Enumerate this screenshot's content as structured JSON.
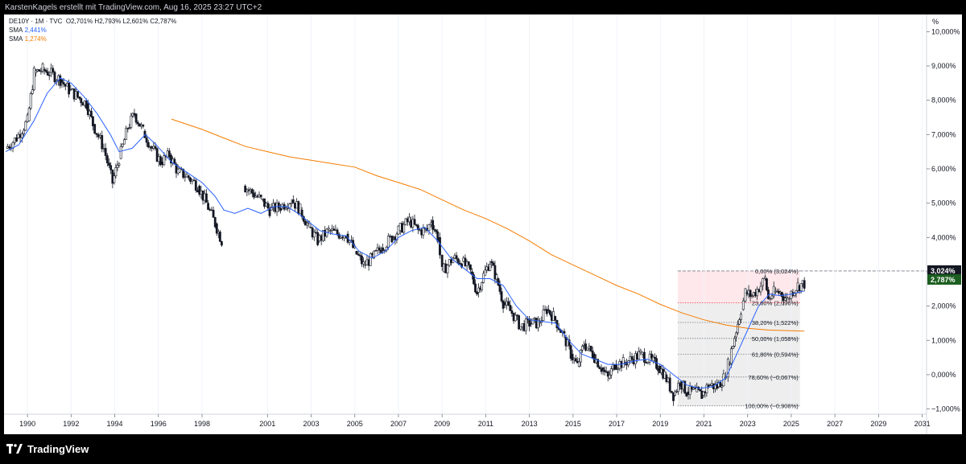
{
  "header": {
    "text": "KarstenKagels erstellt mit TradingView.com, Aug 16, 2025 23:27 UTC+2"
  },
  "legend": {
    "symbol_line": "DE10Y · 1M · TVC",
    "ohlc": "O2,701%  H2,793%  L2,601%  C2,787%",
    "sma1_label": "SMA",
    "sma1_value": "2,441%",
    "sma2_label": "SMA",
    "sma2_value": "1,274%"
  },
  "footer": {
    "brand": "TradingView"
  },
  "colors": {
    "sma_fast": "#2962ff",
    "sma_slow": "#f57c00",
    "fib_top": "#ffcdd2",
    "fib_bottom": "#e0e0e0",
    "price_label": "#1b5e20",
    "fib_label_red": "#f23645"
  },
  "price_labels": {
    "high": "3,024%",
    "last": "2,787%"
  },
  "chart_data": {
    "type": "candlestick",
    "title": "DE10Y · 1M · TVC",
    "ylabel": "%",
    "ylim": [
      -1.15,
      10.5
    ],
    "xlim": [
      1989.0,
      2031.7
    ],
    "x_ticks": [
      1990,
      1992,
      1994,
      1996,
      1998,
      2001,
      2003,
      2005,
      2007,
      2009,
      2011,
      2013,
      2015,
      2017,
      2019,
      2021,
      2023,
      2025,
      2027,
      2029,
      2031
    ],
    "x_tick_labels": [
      "1990",
      "1992",
      "1994",
      "1996",
      "1998",
      "2001",
      "2003",
      "2005",
      "2007",
      "2009",
      "2011",
      "2013",
      "2015",
      "2017",
      "2019",
      "2021",
      "2023",
      "2025",
      "2027",
      "2029",
      "2031"
    ],
    "y_ticks": [
      10,
      9,
      8,
      7,
      6,
      5,
      4,
      3,
      2,
      1,
      0,
      -1
    ],
    "y_tick_labels": [
      "10,000%",
      "9,000%",
      "8,000%",
      "7,000%",
      "6,000%",
      "5,000%",
      "4,000%",
      "3,000%",
      "2,000%",
      "1,000%",
      "0,000%",
      "−1,000%"
    ],
    "y_unit": "%",
    "price_path": [
      [
        1989.0,
        6.6
      ],
      [
        1989.5,
        6.9
      ],
      [
        1990.0,
        7.4
      ],
      [
        1990.3,
        8.8
      ],
      [
        1990.7,
        8.9
      ],
      [
        1991.0,
        8.8
      ],
      [
        1991.5,
        8.6
      ],
      [
        1991.9,
        8.3
      ],
      [
        1992.3,
        8.1
      ],
      [
        1992.7,
        7.9
      ],
      [
        1993.0,
        7.3
      ],
      [
        1993.5,
        6.6
      ],
      [
        1993.9,
        5.6
      ],
      [
        1994.2,
        6.3
      ],
      [
        1994.6,
        7.2
      ],
      [
        1994.9,
        7.6
      ],
      [
        1995.3,
        7.1
      ],
      [
        1995.7,
        6.6
      ],
      [
        1996.1,
        6.2
      ],
      [
        1996.5,
        6.4
      ],
      [
        1996.9,
        5.9
      ],
      [
        1997.3,
        5.8
      ],
      [
        1997.8,
        5.5
      ],
      [
        1998.2,
        5.0
      ],
      [
        1998.6,
        4.4
      ],
      [
        1998.9,
        3.9
      ],
      [
        1999.9,
        5.5
      ],
      [
        2000.3,
        5.3
      ],
      [
        2000.7,
        5.1
      ],
      [
        2001.1,
        4.8
      ],
      [
        2001.6,
        4.9
      ],
      [
        2002.1,
        5.1
      ],
      [
        2002.5,
        4.8
      ],
      [
        2002.9,
        4.3
      ],
      [
        2003.3,
        3.9
      ],
      [
        2003.8,
        4.2
      ],
      [
        2004.2,
        4.1
      ],
      [
        2004.6,
        4.1
      ],
      [
        2005.0,
        3.6
      ],
      [
        2005.4,
        3.2
      ],
      [
        2005.8,
        3.4
      ],
      [
        2006.2,
        3.7
      ],
      [
        2006.7,
        4.0
      ],
      [
        2007.0,
        4.2
      ],
      [
        2007.5,
        4.5
      ],
      [
        2007.9,
        4.2
      ],
      [
        2008.3,
        4.2
      ],
      [
        2008.5,
        4.5
      ],
      [
        2008.8,
        4.0
      ],
      [
        2009.0,
        3.0
      ],
      [
        2009.5,
        3.4
      ],
      [
        2009.9,
        3.3
      ],
      [
        2010.3,
        3.0
      ],
      [
        2010.6,
        2.4
      ],
      [
        2010.9,
        2.9
      ],
      [
        2011.2,
        3.3
      ],
      [
        2011.5,
        2.8
      ],
      [
        2011.8,
        2.1
      ],
      [
        2012.2,
        1.8
      ],
      [
        2012.6,
        1.4
      ],
      [
        2013.0,
        1.5
      ],
      [
        2013.4,
        1.5
      ],
      [
        2013.8,
        1.9
      ],
      [
        2014.1,
        1.7
      ],
      [
        2014.6,
        1.1
      ],
      [
        2014.9,
        0.6
      ],
      [
        2015.2,
        0.25
      ],
      [
        2015.5,
        0.9
      ],
      [
        2015.9,
        0.6
      ],
      [
        2016.3,
        0.2
      ],
      [
        2016.6,
        -0.1
      ],
      [
        2016.9,
        0.3
      ],
      [
        2017.3,
        0.35
      ],
      [
        2017.7,
        0.45
      ],
      [
        2018.1,
        0.6
      ],
      [
        2018.6,
        0.4
      ],
      [
        2018.9,
        0.25
      ],
      [
        2019.2,
        0.0
      ],
      [
        2019.6,
        -0.6
      ],
      [
        2019.9,
        -0.2
      ],
      [
        2020.2,
        -0.5
      ],
      [
        2020.6,
        -0.5
      ],
      [
        2020.9,
        -0.6
      ],
      [
        2021.2,
        -0.3
      ],
      [
        2021.6,
        -0.35
      ],
      [
        2021.9,
        -0.1
      ],
      [
        2022.1,
        0.3
      ],
      [
        2022.4,
        1.1
      ],
      [
        2022.7,
        1.9
      ],
      [
        2022.9,
        2.4
      ],
      [
        2023.2,
        2.3
      ],
      [
        2023.6,
        2.6
      ],
      [
        2023.8,
        2.8
      ],
      [
        2023.95,
        2.2
      ],
      [
        2024.2,
        2.4
      ],
      [
        2024.5,
        2.4
      ],
      [
        2024.8,
        2.2
      ],
      [
        2025.0,
        2.4
      ],
      [
        2025.3,
        2.6
      ],
      [
        2025.6,
        2.65
      ]
    ],
    "sma_fast": {
      "name": "SMA",
      "value_label": "2,441%",
      "points": [
        [
          1989.0,
          6.5
        ],
        [
          1989.6,
          6.7
        ],
        [
          1990.3,
          7.4
        ],
        [
          1990.9,
          8.2
        ],
        [
          1991.5,
          8.65
        ],
        [
          1992.0,
          8.5
        ],
        [
          1992.6,
          8.1
        ],
        [
          1993.2,
          7.6
        ],
        [
          1993.8,
          7.0
        ],
        [
          1994.2,
          6.5
        ],
        [
          1994.8,
          6.6
        ],
        [
          1995.4,
          7.0
        ],
        [
          1995.9,
          6.7
        ],
        [
          1996.6,
          6.2
        ],
        [
          1997.3,
          5.9
        ],
        [
          1998.0,
          5.6
        ],
        [
          1998.6,
          5.2
        ],
        [
          1999.0,
          4.8
        ],
        [
          1999.5,
          4.7
        ],
        [
          2000.1,
          4.85
        ],
        [
          2000.7,
          4.7
        ],
        [
          2001.3,
          4.9
        ],
        [
          2001.9,
          4.9
        ],
        [
          2002.4,
          4.7
        ],
        [
          2002.9,
          4.45
        ],
        [
          2003.4,
          4.2
        ],
        [
          2004.0,
          4.1
        ],
        [
          2004.6,
          4.05
        ],
        [
          2005.2,
          3.6
        ],
        [
          2005.8,
          3.4
        ],
        [
          2006.4,
          3.6
        ],
        [
          2007.0,
          4.0
        ],
        [
          2007.6,
          4.2
        ],
        [
          2008.2,
          4.3
        ],
        [
          2008.8,
          3.9
        ],
        [
          2009.4,
          3.4
        ],
        [
          2010.0,
          3.1
        ],
        [
          2010.6,
          2.8
        ],
        [
          2011.2,
          2.8
        ],
        [
          2011.8,
          2.6
        ],
        [
          2012.4,
          2.0
        ],
        [
          2013.0,
          1.6
        ],
        [
          2013.6,
          1.55
        ],
        [
          2014.2,
          1.5
        ],
        [
          2014.8,
          1.0
        ],
        [
          2015.4,
          0.6
        ],
        [
          2016.0,
          0.45
        ],
        [
          2016.6,
          0.3
        ],
        [
          2017.2,
          0.3
        ],
        [
          2017.8,
          0.4
        ],
        [
          2018.4,
          0.45
        ],
        [
          2019.0,
          0.3
        ],
        [
          2019.6,
          0.0
        ],
        [
          2020.2,
          -0.3
        ],
        [
          2020.8,
          -0.4
        ],
        [
          2021.4,
          -0.35
        ],
        [
          2022.0,
          -0.1
        ],
        [
          2022.5,
          0.6
        ],
        [
          2023.0,
          1.3
        ],
        [
          2023.5,
          2.0
        ],
        [
          2024.0,
          2.35
        ],
        [
          2024.5,
          2.3
        ],
        [
          2025.0,
          2.35
        ],
        [
          2025.6,
          2.44
        ]
      ]
    },
    "sma_slow": {
      "name": "SMA",
      "value_label": "1,274%",
      "points": [
        [
          1996.6,
          7.45
        ],
        [
          1997.3,
          7.3
        ],
        [
          1998.0,
          7.15
        ],
        [
          1999.0,
          6.9
        ],
        [
          2000.0,
          6.65
        ],
        [
          2001.0,
          6.5
        ],
        [
          2002.0,
          6.35
        ],
        [
          2003.0,
          6.25
        ],
        [
          2004.0,
          6.15
        ],
        [
          2005.0,
          6.05
        ],
        [
          2006.0,
          5.8
        ],
        [
          2007.0,
          5.6
        ],
        [
          2008.0,
          5.4
        ],
        [
          2009.0,
          5.1
        ],
        [
          2010.0,
          4.8
        ],
        [
          2011.0,
          4.55
        ],
        [
          2012.0,
          4.25
        ],
        [
          2013.0,
          3.9
        ],
        [
          2014.0,
          3.5
        ],
        [
          2015.0,
          3.2
        ],
        [
          2016.0,
          2.9
        ],
        [
          2017.0,
          2.6
        ],
        [
          2018.0,
          2.35
        ],
        [
          2019.0,
          2.05
        ],
        [
          2020.0,
          1.8
        ],
        [
          2021.0,
          1.6
        ],
        [
          2022.0,
          1.45
        ],
        [
          2023.0,
          1.35
        ],
        [
          2024.0,
          1.3
        ],
        [
          2025.6,
          1.27
        ]
      ]
    },
    "fibonacci": {
      "x_start": 2019.8,
      "x_end": 2025.4,
      "levels": [
        {
          "ratio": "0,00%",
          "price": 3.024,
          "label": "0,00% (3,024%)"
        },
        {
          "ratio": "23,60%",
          "price": 2.096,
          "label": "23,60% (2,096%)"
        },
        {
          "ratio": "38,20%",
          "price": 1.522,
          "label": "38,20% (1,522%)"
        },
        {
          "ratio": "50,00%",
          "price": 1.058,
          "label": "50,00% (1,058%)"
        },
        {
          "ratio": "61,80%",
          "price": 0.594,
          "label": "61,80% (0,594%)"
        },
        {
          "ratio": "78,60%",
          "price": -0.067,
          "label": "78,60% (−0,067%)"
        },
        {
          "ratio": "100,00%",
          "price": -0.908,
          "label": "100,00% (−0,908%)"
        }
      ]
    },
    "last_price": 2.787,
    "high_price": 3.024
  }
}
